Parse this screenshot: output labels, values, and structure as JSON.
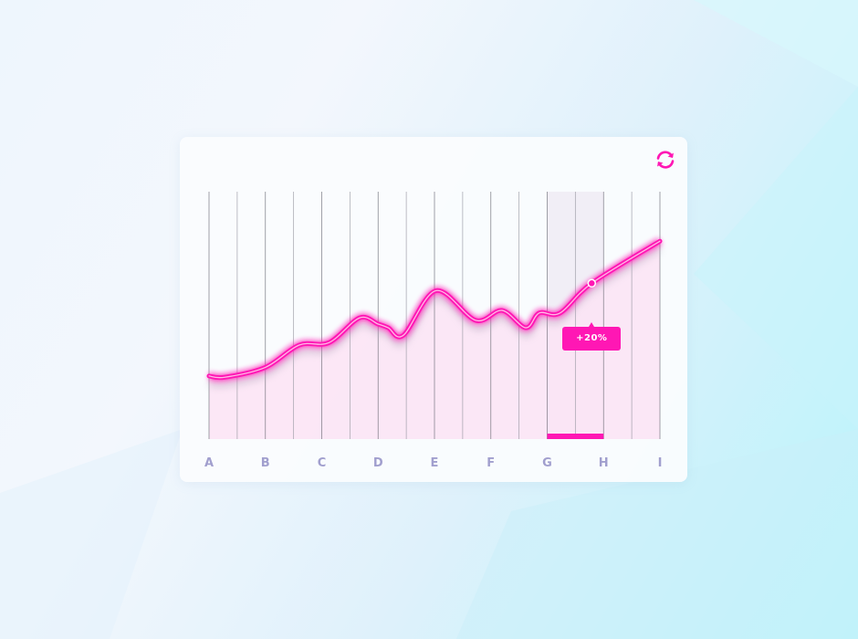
{
  "chart_data": {
    "type": "area",
    "title": "",
    "xlabel": "",
    "ylabel": "",
    "categories": [
      "A",
      "B",
      "C",
      "D",
      "E",
      "F",
      "G",
      "H",
      "I"
    ],
    "ylim": [
      0,
      100
    ],
    "grid": {
      "vertical": true,
      "horizontal": false,
      "subdivisions_per_category": 2
    },
    "series": [
      {
        "points": [
          [
            0,
            25.5
          ],
          [
            0.28,
            25
          ],
          [
            1,
            29
          ],
          [
            1.6,
            38
          ],
          [
            2.13,
            39
          ],
          [
            2.67,
            49
          ],
          [
            3,
            46.5
          ],
          [
            3.18,
            45
          ],
          [
            3.45,
            42
          ],
          [
            4.03,
            60
          ],
          [
            4.73,
            48
          ],
          [
            5.2,
            52
          ],
          [
            5.62,
            45
          ],
          [
            5.86,
            51
          ],
          [
            6.23,
            51
          ],
          [
            6.79,
            63
          ],
          [
            8,
            80
          ]
        ]
      }
    ],
    "highlight_range": [
      "G",
      "H"
    ],
    "annotation": {
      "label": "+20%",
      "x": 6.79,
      "y": 63
    },
    "colors": {
      "line": "#ff17b4",
      "fill": "#fbe3f4",
      "highlight": "#f1eef6",
      "axis_text": "#a19fce"
    }
  },
  "icons": {
    "refresh": "refresh-icon"
  }
}
